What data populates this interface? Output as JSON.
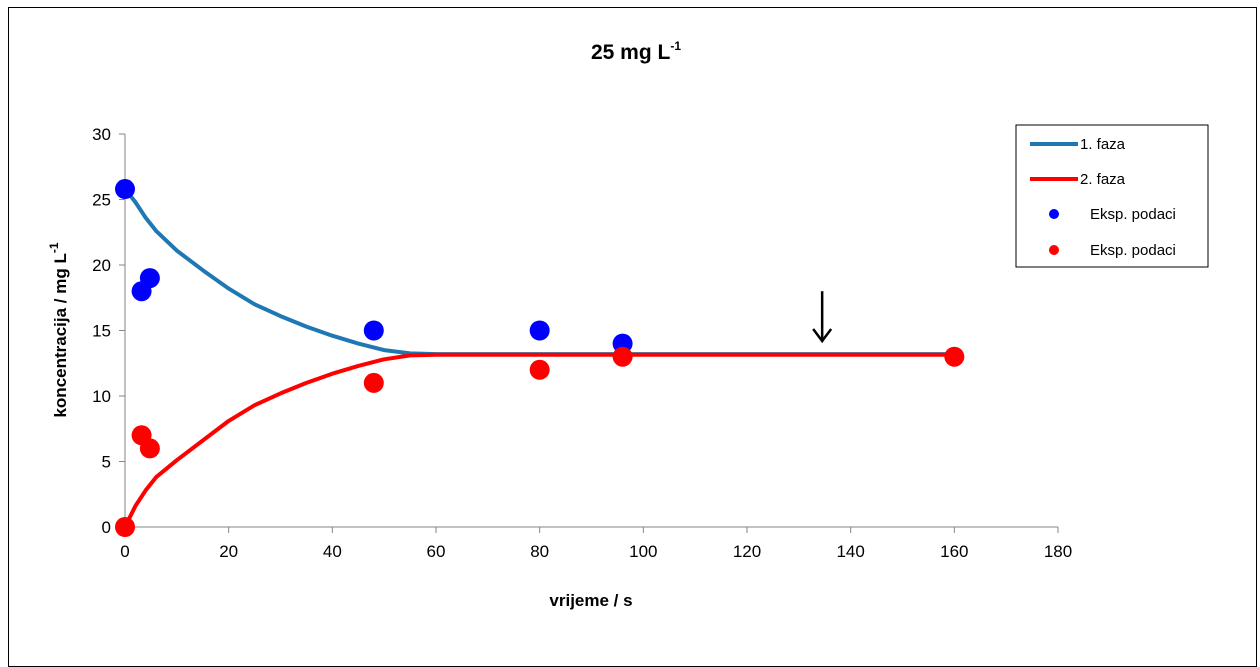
{
  "chart_data": {
    "type": "line",
    "title": "25 mg L",
    "title_sup": "-1",
    "xlabel": "vrijeme  / s",
    "ylabel": "koncentracija  / mg L",
    "ylabel_sup": "-1",
    "xlim": [
      0,
      180
    ],
    "ylim": [
      0,
      30
    ],
    "xticks": [
      0,
      20,
      40,
      60,
      80,
      100,
      120,
      140,
      160,
      180
    ],
    "yticks": [
      0,
      5,
      10,
      15,
      20,
      25,
      30
    ],
    "grid": false,
    "legend_position": "top-right",
    "arrow_annotation": {
      "x": 134.5,
      "y_top": 18.0,
      "y_tip": 14.2
    },
    "series": [
      {
        "name": "1. faza",
        "kind": "line",
        "color": "#1f77b4",
        "x": [
          0,
          2,
          4,
          6,
          10,
          15,
          20,
          25,
          30,
          35,
          40,
          45,
          50,
          55,
          60,
          70,
          80,
          90,
          100,
          120,
          140,
          160
        ],
        "y": [
          25.8,
          24.8,
          23.6,
          22.6,
          21.1,
          19.6,
          18.2,
          17.0,
          16.1,
          15.3,
          14.6,
          14.0,
          13.5,
          13.25,
          13.2,
          13.2,
          13.2,
          13.2,
          13.2,
          13.2,
          13.2,
          13.2
        ]
      },
      {
        "name": "2. faza",
        "kind": "line",
        "color": "#ff0000",
        "x": [
          0,
          1,
          2,
          4,
          6,
          10,
          15,
          20,
          25,
          30,
          35,
          40,
          45,
          50,
          55,
          60,
          70,
          80,
          90,
          100,
          120,
          140,
          160
        ],
        "y": [
          0,
          0.8,
          1.6,
          2.8,
          3.8,
          5.1,
          6.6,
          8.1,
          9.3,
          10.2,
          11.0,
          11.7,
          12.3,
          12.8,
          13.1,
          13.15,
          13.15,
          13.15,
          13.15,
          13.15,
          13.15,
          13.15,
          13.15
        ]
      },
      {
        "name": "Eksp. podaci",
        "kind": "scatter",
        "color": "#0000ff",
        "x": [
          0,
          3.2,
          4.8,
          48,
          80,
          96
        ],
        "y": [
          25.8,
          18.0,
          19.0,
          15.0,
          15.0,
          14.0
        ]
      },
      {
        "name": "Eksp. podaci",
        "kind": "scatter",
        "color": "#ff0000",
        "x": [
          0,
          3.2,
          4.8,
          48,
          80,
          96,
          160
        ],
        "y": [
          0,
          7.0,
          6.0,
          11.0,
          12.0,
          13.0,
          13.0
        ]
      }
    ]
  }
}
